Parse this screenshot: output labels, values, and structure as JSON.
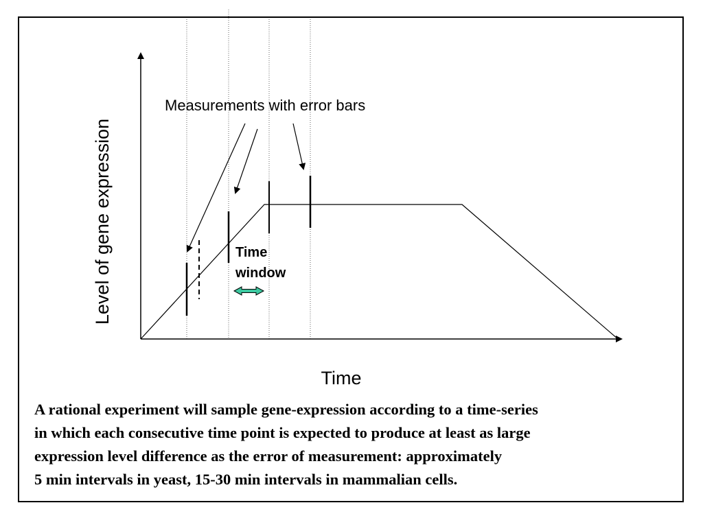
{
  "diagram": {
    "ylabel": "Level of gene expression",
    "xlabel": "Time",
    "annotation": "Measurements with error bars",
    "time_window_line1": "Time",
    "time_window_line2": "window",
    "colors": {
      "ink": "#000000",
      "arrow_fill": "#3cc8a0",
      "guides": "#666666"
    }
  },
  "caption": {
    "lines": [
      "A rational experiment will sample gene-expression according to a time-series",
      "in which each consecutive time point is expected to produce at least as large",
      "expression level difference as the error of measurement: approximately",
      "5 min intervals in yeast, 15-30 min intervals in mammalian cells."
    ]
  }
}
